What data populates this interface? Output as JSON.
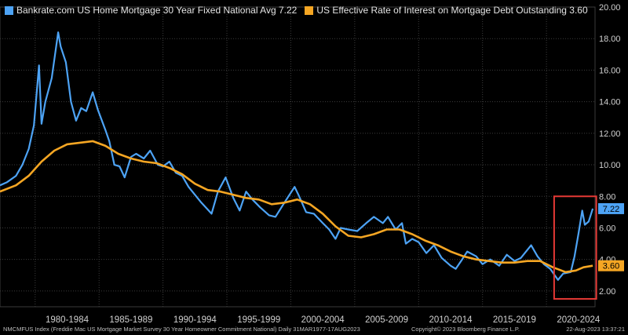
{
  "legend": [
    {
      "label": "Bankrate.com US Home Mortgage 30 Year Fixed National Avg 7.22",
      "color": "#4da3f5"
    },
    {
      "label": "US Effective Rate of Interest on Mortgage Debt Outstanding 3.60",
      "color": "#f5a623"
    }
  ],
  "footer": {
    "left": "NMCMFUS Index (Freddie Mac US Mortgage Market Survey 30 Year Homeowner Commitment National)  Daily 31MAR1977-17AUG2023",
    "center": "Copyright© 2023 Bloomberg Finance L.P.",
    "right": "22-Aug-2023 13:37:21"
  },
  "chart_data": {
    "type": "line",
    "xlim": [
      1977.25,
      2023.8
    ],
    "ylim": [
      1.0,
      20.0
    ],
    "y_ticks": [
      "2.00",
      "4.00",
      "6.00",
      "8.00",
      "10.00",
      "12.00",
      "14.00",
      "16.00",
      "18.00",
      "20.00"
    ],
    "x_tick_labels": [
      "1980-1984",
      "1985-1989",
      "1990-1994",
      "1995-1999",
      "2000-2004",
      "2005-2009",
      "2010-2014",
      "2015-2019",
      "2020-2024"
    ],
    "grid": true,
    "series": [
      {
        "name": "Bankrate.com US Home Mortgage 30 Year Fixed National Avg",
        "color": "#4da3f5",
        "last_value_label": "7.22",
        "points": [
          [
            1977.25,
            8.7
          ],
          [
            1977.8,
            8.9
          ],
          [
            1978.5,
            9.3
          ],
          [
            1979.0,
            10.0
          ],
          [
            1979.5,
            11.0
          ],
          [
            1979.9,
            12.5
          ],
          [
            1980.3,
            16.3
          ],
          [
            1980.5,
            12.6
          ],
          [
            1980.8,
            14.0
          ],
          [
            1981.3,
            15.5
          ],
          [
            1981.8,
            18.4
          ],
          [
            1982.0,
            17.5
          ],
          [
            1982.4,
            16.5
          ],
          [
            1982.8,
            14.0
          ],
          [
            1983.2,
            12.8
          ],
          [
            1983.6,
            13.6
          ],
          [
            1984.0,
            13.4
          ],
          [
            1984.5,
            14.6
          ],
          [
            1984.9,
            13.5
          ],
          [
            1985.5,
            12.2
          ],
          [
            1985.8,
            11.5
          ],
          [
            1986.2,
            10.0
          ],
          [
            1986.6,
            9.9
          ],
          [
            1987.0,
            9.2
          ],
          [
            1987.5,
            10.5
          ],
          [
            1987.9,
            10.7
          ],
          [
            1988.5,
            10.4
          ],
          [
            1989.0,
            10.9
          ],
          [
            1989.6,
            10.0
          ],
          [
            1990.0,
            9.9
          ],
          [
            1990.5,
            10.2
          ],
          [
            1991.0,
            9.5
          ],
          [
            1991.5,
            9.3
          ],
          [
            1992.0,
            8.6
          ],
          [
            1992.6,
            8.0
          ],
          [
            1993.0,
            7.6
          ],
          [
            1993.8,
            6.9
          ],
          [
            1994.3,
            8.3
          ],
          [
            1994.9,
            9.2
          ],
          [
            1995.5,
            7.9
          ],
          [
            1996.0,
            7.1
          ],
          [
            1996.5,
            8.3
          ],
          [
            1997.0,
            7.8
          ],
          [
            1997.6,
            7.3
          ],
          [
            1998.3,
            6.8
          ],
          [
            1998.8,
            6.7
          ],
          [
            1999.5,
            7.6
          ],
          [
            2000.3,
            8.6
          ],
          [
            2000.6,
            8.1
          ],
          [
            2001.2,
            7.0
          ],
          [
            2001.8,
            6.9
          ],
          [
            2002.5,
            6.3
          ],
          [
            2003.0,
            5.9
          ],
          [
            2003.5,
            5.3
          ],
          [
            2003.9,
            6.0
          ],
          [
            2004.5,
            5.9
          ],
          [
            2005.2,
            5.8
          ],
          [
            2005.9,
            6.3
          ],
          [
            2006.5,
            6.7
          ],
          [
            2007.2,
            6.3
          ],
          [
            2007.6,
            6.7
          ],
          [
            2008.2,
            5.9
          ],
          [
            2008.7,
            6.3
          ],
          [
            2009.0,
            5.0
          ],
          [
            2009.5,
            5.3
          ],
          [
            2010.0,
            5.1
          ],
          [
            2010.6,
            4.4
          ],
          [
            2011.2,
            4.9
          ],
          [
            2011.8,
            4.1
          ],
          [
            2012.5,
            3.6
          ],
          [
            2012.9,
            3.4
          ],
          [
            2013.4,
            4.0
          ],
          [
            2013.8,
            4.5
          ],
          [
            2014.5,
            4.2
          ],
          [
            2015.0,
            3.7
          ],
          [
            2015.6,
            4.0
          ],
          [
            2016.3,
            3.6
          ],
          [
            2016.9,
            4.3
          ],
          [
            2017.5,
            3.9
          ],
          [
            2018.0,
            4.1
          ],
          [
            2018.8,
            4.9
          ],
          [
            2019.3,
            4.2
          ],
          [
            2019.8,
            3.7
          ],
          [
            2020.3,
            3.4
          ],
          [
            2020.9,
            2.7
          ],
          [
            2021.3,
            3.1
          ],
          [
            2021.9,
            3.2
          ],
          [
            2022.2,
            4.2
          ],
          [
            2022.5,
            5.6
          ],
          [
            2022.8,
            7.1
          ],
          [
            2023.0,
            6.2
          ],
          [
            2023.3,
            6.4
          ],
          [
            2023.62,
            7.22
          ]
        ]
      },
      {
        "name": "US Effective Rate of Interest on Mortgage Debt Outstanding",
        "color": "#f5a623",
        "last_value_label": "3.60",
        "points": [
          [
            1977.25,
            8.3
          ],
          [
            1978.5,
            8.7
          ],
          [
            1979.5,
            9.3
          ],
          [
            1980.5,
            10.2
          ],
          [
            1981.5,
            10.9
          ],
          [
            1982.5,
            11.3
          ],
          [
            1983.5,
            11.4
          ],
          [
            1984.5,
            11.5
          ],
          [
            1985.5,
            11.2
          ],
          [
            1986.5,
            10.7
          ],
          [
            1987.5,
            10.4
          ],
          [
            1988.5,
            10.2
          ],
          [
            1989.5,
            10.1
          ],
          [
            1990.5,
            9.8
          ],
          [
            1991.5,
            9.4
          ],
          [
            1992.5,
            8.8
          ],
          [
            1993.5,
            8.4
          ],
          [
            1994.5,
            8.3
          ],
          [
            1995.5,
            8.1
          ],
          [
            1996.5,
            7.9
          ],
          [
            1997.5,
            7.8
          ],
          [
            1998.5,
            7.5
          ],
          [
            1999.5,
            7.6
          ],
          [
            2000.5,
            7.8
          ],
          [
            2001.5,
            7.5
          ],
          [
            2002.5,
            6.9
          ],
          [
            2003.5,
            6.1
          ],
          [
            2004.5,
            5.5
          ],
          [
            2005.5,
            5.4
          ],
          [
            2006.5,
            5.6
          ],
          [
            2007.5,
            5.9
          ],
          [
            2008.5,
            5.9
          ],
          [
            2009.5,
            5.6
          ],
          [
            2010.5,
            5.2
          ],
          [
            2011.5,
            4.9
          ],
          [
            2012.5,
            4.5
          ],
          [
            2013.5,
            4.2
          ],
          [
            2014.5,
            4.0
          ],
          [
            2015.5,
            3.9
          ],
          [
            2016.5,
            3.8
          ],
          [
            2017.5,
            3.8
          ],
          [
            2018.5,
            3.9
          ],
          [
            2019.5,
            3.9
          ],
          [
            2020.5,
            3.5
          ],
          [
            2021.5,
            3.2
          ],
          [
            2022.3,
            3.3
          ],
          [
            2022.9,
            3.5
          ],
          [
            2023.62,
            3.6
          ]
        ]
      }
    ]
  },
  "highlight_box": {
    "x_range": [
      2020.6,
      2023.9
    ],
    "y_range": [
      1.5,
      8.0
    ],
    "color": "#e53935"
  }
}
